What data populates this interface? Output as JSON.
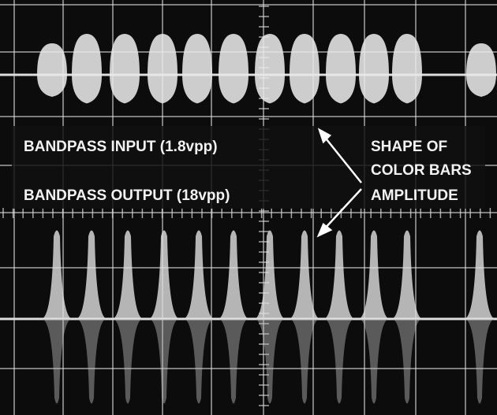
{
  "labels": {
    "input": "BANDPASS INPUT  (1.8vpp)",
    "output": "BANDPASS OUTPUT  (18vpp)",
    "note": [
      "SHAPE OF",
      "COLOR BARS",
      "AMPLITUDE"
    ]
  }
}
